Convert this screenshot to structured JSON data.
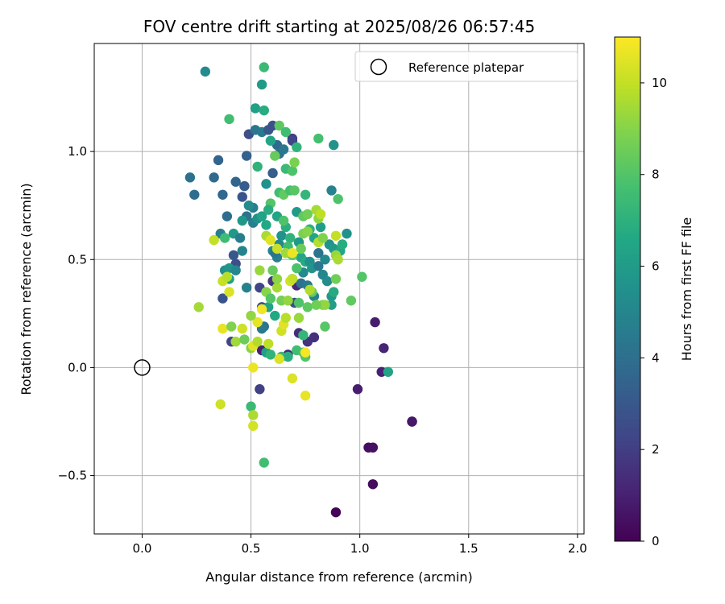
{
  "chart_data": {
    "type": "scatter",
    "title": "FOV centre drift starting at 2025/08/26 06:57:45",
    "xlabel": "Angular distance from reference (arcmin)",
    "ylabel": "Rotation from reference (arcmin)",
    "xlim": [
      -0.22,
      2.03
    ],
    "ylim": [
      -0.77,
      1.5
    ],
    "xticks": [
      0.0,
      0.5,
      1.0,
      1.5,
      2.0
    ],
    "xtick_labels": [
      "0.0",
      "0.5",
      "1.0",
      "1.5",
      "2.0"
    ],
    "yticks": [
      -0.5,
      0.0,
      0.5,
      1.0
    ],
    "ytick_labels": [
      "−0.5",
      "0.0",
      "0.5",
      "1.0"
    ],
    "grid": true,
    "legend": {
      "placement": "top-right",
      "label": "Reference platepar"
    },
    "reference_point": {
      "x": 0.0,
      "y": 0.0
    },
    "colorbar": {
      "label": "Hours from first FF file",
      "range": [
        0,
        11
      ],
      "ticks": [
        0,
        2,
        4,
        6,
        8,
        10
      ],
      "tick_labels": [
        "0",
        "2",
        "4",
        "6",
        "8",
        "10"
      ],
      "colormap": "viridis"
    },
    "series": [
      {
        "columns": [
          "x",
          "y",
          "hours"
        ],
        "points": [
          [
            0.89,
            -0.67,
            0.1
          ],
          [
            1.06,
            -0.54,
            0.3
          ],
          [
            1.04,
            -0.37,
            0.4
          ],
          [
            1.06,
            -0.37,
            0.5
          ],
          [
            1.24,
            -0.25,
            0.6
          ],
          [
            1.24,
            -0.25,
            0.7
          ],
          [
            0.99,
            -0.1,
            0.9
          ],
          [
            1.1,
            -0.02,
            1.0
          ],
          [
            1.11,
            0.09,
            1.1
          ],
          [
            1.07,
            0.21,
            0.9
          ],
          [
            0.54,
            -0.1,
            2.1
          ],
          [
            0.55,
            0.08,
            1.0
          ],
          [
            0.67,
            0.06,
            1.2
          ],
          [
            0.72,
            0.16,
            1.4
          ],
          [
            0.76,
            0.12,
            1.6
          ],
          [
            0.79,
            0.14,
            1.5
          ],
          [
            0.6,
            0.4,
            1.8
          ],
          [
            0.54,
            0.37,
            2.2
          ],
          [
            0.71,
            0.38,
            1.3
          ],
          [
            0.69,
            0.41,
            0.8
          ],
          [
            0.7,
            0.3,
            2.4
          ],
          [
            0.43,
            0.48,
            2.6
          ],
          [
            0.41,
            0.12,
            2.2
          ],
          [
            0.37,
            0.32,
            2.8
          ],
          [
            0.42,
            0.52,
            3.0
          ],
          [
            0.55,
            0.28,
            2.7
          ],
          [
            0.29,
            1.37,
            5.2
          ],
          [
            0.33,
            0.88,
            3.8
          ],
          [
            0.35,
            0.96,
            3.5
          ],
          [
            0.37,
            0.8,
            3.7
          ],
          [
            0.24,
            0.8,
            3.9
          ],
          [
            0.22,
            0.88,
            4.1
          ],
          [
            0.43,
            0.86,
            3.6
          ],
          [
            0.46,
            0.79,
            2.9
          ],
          [
            0.47,
            0.84,
            3.2
          ],
          [
            0.48,
            0.98,
            3.4
          ],
          [
            0.49,
            1.08,
            2.6
          ],
          [
            0.52,
            1.1,
            4.3
          ],
          [
            0.55,
            1.09,
            4.5
          ],
          [
            0.58,
            1.1,
            3.0
          ],
          [
            0.6,
            1.12,
            2.7
          ],
          [
            0.62,
            1.03,
            3.8
          ],
          [
            0.63,
            0.99,
            4.0
          ],
          [
            0.65,
            1.01,
            4.4
          ],
          [
            0.69,
            1.06,
            1.9
          ],
          [
            0.69,
            1.05,
            2.3
          ],
          [
            0.52,
            1.2,
            6.2
          ],
          [
            0.56,
            1.19,
            6.8
          ],
          [
            0.56,
            1.39,
            7.4
          ],
          [
            0.55,
            1.31,
            6.0
          ],
          [
            0.4,
            1.15,
            7.6
          ],
          [
            0.53,
            0.93,
            7.1
          ],
          [
            0.51,
            0.74,
            4.6
          ],
          [
            0.49,
            0.75,
            5.3
          ],
          [
            0.48,
            0.7,
            4.2
          ],
          [
            0.46,
            0.68,
            5.8
          ],
          [
            0.51,
            0.67,
            4.7
          ],
          [
            0.53,
            0.69,
            5.5
          ],
          [
            0.55,
            0.7,
            6.3
          ],
          [
            0.57,
            0.66,
            6.6
          ],
          [
            0.6,
            0.54,
            5.0
          ],
          [
            0.62,
            0.51,
            4.8
          ],
          [
            0.63,
            0.57,
            5.1
          ],
          [
            0.61,
            0.53,
            4.3
          ],
          [
            0.64,
            0.61,
            5.6
          ],
          [
            0.66,
            0.65,
            6.9
          ],
          [
            0.72,
            0.58,
            5.9
          ],
          [
            0.73,
            0.51,
            6.4
          ],
          [
            0.75,
            0.49,
            6.7
          ],
          [
            0.74,
            0.44,
            5.2
          ],
          [
            0.77,
            0.49,
            5.4
          ],
          [
            0.73,
            0.39,
            4.1
          ],
          [
            0.76,
            0.38,
            4.5
          ],
          [
            0.78,
            0.46,
            5.7
          ],
          [
            0.81,
            0.47,
            4.4
          ],
          [
            0.83,
            0.43,
            5.0
          ],
          [
            0.85,
            0.4,
            5.3
          ],
          [
            0.87,
            0.33,
            5.8
          ],
          [
            0.87,
            0.29,
            6.1
          ],
          [
            0.88,
            0.35,
            6.7
          ],
          [
            0.79,
            0.33,
            4.9
          ],
          [
            0.81,
            0.53,
            4.2
          ],
          [
            0.84,
            0.5,
            5.1
          ],
          [
            0.86,
            0.57,
            5.6
          ],
          [
            0.88,
            0.55,
            5.9
          ],
          [
            0.91,
            0.54,
            6.5
          ],
          [
            0.92,
            0.57,
            6.8
          ],
          [
            0.94,
            0.62,
            5.5
          ],
          [
            0.87,
            0.82,
            4.9
          ],
          [
            0.88,
            1.03,
            5.6
          ],
          [
            0.81,
            1.06,
            7.7
          ],
          [
            0.9,
            0.78,
            7.9
          ],
          [
            0.75,
            0.8,
            7.2
          ],
          [
            0.77,
            0.64,
            7.0
          ],
          [
            0.79,
            0.6,
            6.4
          ],
          [
            0.82,
            0.65,
            6.1
          ],
          [
            0.36,
            0.62,
            4.7
          ],
          [
            0.39,
            0.7,
            3.9
          ],
          [
            0.38,
            0.6,
            7.5
          ],
          [
            0.38,
            0.45,
            5.4
          ],
          [
            0.4,
            0.46,
            5.7
          ],
          [
            0.4,
            0.41,
            6.2
          ],
          [
            0.43,
            0.45,
            5.0
          ],
          [
            0.42,
            0.62,
            5.9
          ],
          [
            0.45,
            0.6,
            4.6
          ],
          [
            0.46,
            0.54,
            4.9
          ],
          [
            0.48,
            0.37,
            4.8
          ],
          [
            0.56,
            0.19,
            4.1
          ],
          [
            0.55,
            0.18,
            4.4
          ],
          [
            0.58,
            0.28,
            6.3
          ],
          [
            0.61,
            0.24,
            6.6
          ],
          [
            0.57,
            0.07,
            6.1
          ],
          [
            0.59,
            0.06,
            7.1
          ],
          [
            0.64,
            0.05,
            7.3
          ],
          [
            0.67,
            0.05,
            6.9
          ],
          [
            0.71,
            0.08,
            7.6
          ],
          [
            0.74,
            0.07,
            7.8
          ],
          [
            0.75,
            0.05,
            8.0
          ],
          [
            0.74,
            0.15,
            7.2
          ],
          [
            0.72,
            0.3,
            7.9
          ],
          [
            0.76,
            0.28,
            8.2
          ],
          [
            0.78,
            0.35,
            8.5
          ],
          [
            0.83,
            0.29,
            8.8
          ],
          [
            0.84,
            0.29,
            9.2
          ],
          [
            0.84,
            0.19,
            8.1
          ],
          [
            0.8,
            0.29,
            8.6
          ],
          [
            0.5,
            -0.18,
            7.4
          ],
          [
            0.51,
            -0.22,
            9.6
          ],
          [
            0.51,
            -0.27,
            10.3
          ],
          [
            0.56,
            -0.44,
            7.6
          ],
          [
            0.36,
            -0.17,
            10.2
          ],
          [
            0.69,
            -0.05,
            10.4
          ],
          [
            0.75,
            -0.13,
            10.6
          ],
          [
            1.13,
            -0.02,
            6.3
          ],
          [
            1.01,
            0.42,
            8.0
          ],
          [
            0.96,
            0.31,
            8.3
          ],
          [
            0.63,
            1.12,
            8.2
          ],
          [
            0.66,
            1.09,
            7.6
          ],
          [
            0.61,
            0.98,
            8.4
          ],
          [
            0.66,
            0.92,
            7.4
          ],
          [
            0.69,
            0.91,
            7.9
          ],
          [
            0.7,
            0.95,
            8.8
          ],
          [
            0.71,
            1.02,
            7.1
          ],
          [
            0.59,
            1.05,
            6.5
          ],
          [
            0.57,
            0.85,
            5.5
          ],
          [
            0.6,
            0.9,
            3.2
          ],
          [
            0.63,
            0.81,
            7.6
          ],
          [
            0.65,
            0.8,
            8.3
          ],
          [
            0.68,
            0.82,
            7.7
          ],
          [
            0.7,
            0.82,
            8.1
          ],
          [
            0.71,
            0.72,
            6.0
          ],
          [
            0.59,
            0.76,
            8.0
          ],
          [
            0.58,
            0.73,
            6.8
          ],
          [
            0.62,
            0.7,
            6.4
          ],
          [
            0.65,
            0.68,
            7.9
          ],
          [
            0.74,
            0.7,
            8.3
          ],
          [
            0.76,
            0.71,
            8.6
          ],
          [
            0.8,
            0.73,
            9.5
          ],
          [
            0.81,
            0.69,
            9.1
          ],
          [
            0.74,
            0.62,
            8.8
          ],
          [
            0.76,
            0.63,
            9.0
          ],
          [
            0.68,
            0.6,
            7.1
          ],
          [
            0.67,
            0.56,
            7.5
          ],
          [
            0.69,
            0.52,
            8.1
          ],
          [
            0.73,
            0.55,
            8.5
          ],
          [
            0.71,
            0.46,
            7.8
          ],
          [
            0.57,
            0.61,
            9.6
          ],
          [
            0.59,
            0.59,
            10.5
          ],
          [
            0.62,
            0.55,
            10.1
          ],
          [
            0.66,
            0.53,
            9.4
          ],
          [
            0.69,
            0.53,
            10.7
          ],
          [
            0.54,
            0.45,
            9.3
          ],
          [
            0.57,
            0.35,
            9.0
          ],
          [
            0.62,
            0.37,
            9.5
          ],
          [
            0.64,
            0.31,
            8.7
          ],
          [
            0.67,
            0.31,
            9.2
          ],
          [
            0.68,
            0.4,
            10.3
          ],
          [
            0.69,
            0.41,
            10.0
          ],
          [
            0.62,
            0.41,
            9.1
          ],
          [
            0.6,
            0.45,
            8.4
          ],
          [
            0.77,
            0.36,
            9.7
          ],
          [
            0.81,
            0.58,
            9.8
          ],
          [
            0.83,
            0.6,
            8.9
          ],
          [
            0.89,
            0.52,
            9.3
          ],
          [
            0.89,
            0.61,
            10.0
          ],
          [
            0.9,
            0.5,
            9.6
          ],
          [
            0.89,
            0.41,
            8.6
          ],
          [
            0.82,
            0.71,
            9.9
          ],
          [
            0.33,
            0.59,
            10.0
          ],
          [
            0.37,
            0.4,
            10.1
          ],
          [
            0.39,
            0.42,
            9.8
          ],
          [
            0.4,
            0.35,
            10.4
          ],
          [
            0.26,
            0.28,
            9.5
          ],
          [
            0.37,
            0.18,
            10.6
          ],
          [
            0.41,
            0.19,
            8.9
          ],
          [
            0.46,
            0.18,
            10.2
          ],
          [
            0.43,
            0.12,
            9.4
          ],
          [
            0.47,
            0.13,
            8.5
          ],
          [
            0.5,
            0.09,
            9.0
          ],
          [
            0.51,
            0.1,
            10.5
          ],
          [
            0.53,
            0.12,
            9.7
          ],
          [
            0.58,
            0.11,
            9.9
          ],
          [
            0.55,
            0.27,
            10.8
          ],
          [
            0.53,
            0.21,
            10.6
          ],
          [
            0.5,
            0.24,
            9.2
          ],
          [
            0.51,
            0.0,
            10.7
          ],
          [
            0.63,
            0.04,
            10.4
          ],
          [
            0.64,
            0.17,
            10.2
          ],
          [
            0.65,
            0.2,
            10.5
          ],
          [
            0.66,
            0.23,
            9.8
          ],
          [
            0.72,
            0.23,
            9.3
          ],
          [
            0.75,
            0.07,
            10.9
          ],
          [
            0.59,
            0.32,
            8.0
          ]
        ]
      }
    ]
  }
}
